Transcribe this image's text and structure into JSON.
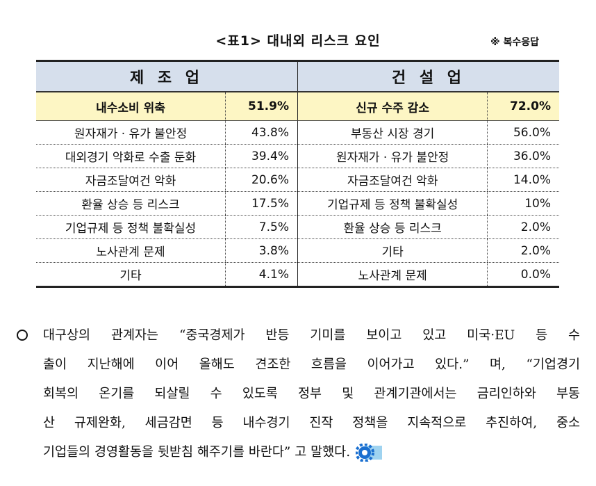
{
  "title": "<표1> 대내외 리스크 요인",
  "note": "※ 복수응답",
  "table": {
    "headers": [
      "제 조 업",
      "건 설 업"
    ],
    "rows": [
      [
        "내수소비 위축",
        "51.9%",
        "신규 수주 감소",
        "72.0%"
      ],
      [
        "원자재가 · 유가 불안정",
        "43.8%",
        "부동산 시장 경기",
        "56.0%"
      ],
      [
        "대외경기 악화로 수출 둔화",
        "39.4%",
        "원자재가 · 유가 불안정",
        "36.0%"
      ],
      [
        "자금조달여건 악화",
        "20.6%",
        "자금조달여건 악화",
        "14.0%"
      ],
      [
        "환율 상승 등 리스크",
        "17.5%",
        "기업규제 등 정책 불확실성",
        "10%"
      ],
      [
        "기업규제 등 정책 불확실성",
        "7.5%",
        "환율 상승 등 리스크",
        "2.0%"
      ],
      [
        "노사관계 문제",
        "3.8%",
        "기타",
        "2.0%"
      ],
      [
        "기타",
        "4.1%",
        "노사관계 문제",
        "0.0%"
      ]
    ]
  },
  "paragraph": [
    "대구상의 관계자는 “중국경제가 반등 기미를 보이고 있고 미국·EU 등 수",
    "출이 지난해에 이어 올해도 견조한 흐름을 이어가고 있다.” 며, “기업경기",
    "회복의 온기를 되살릴 수 있도록 정부 및 관계기관에서는 금리인하와 부동",
    "산 규제완화, 세금감면 등 내수경기 진작 정책을 지속적으로 추진하여, 중소",
    "기업들의 경영활동을 뒷받침 해주기를 바란다” 고 말했다."
  ]
}
